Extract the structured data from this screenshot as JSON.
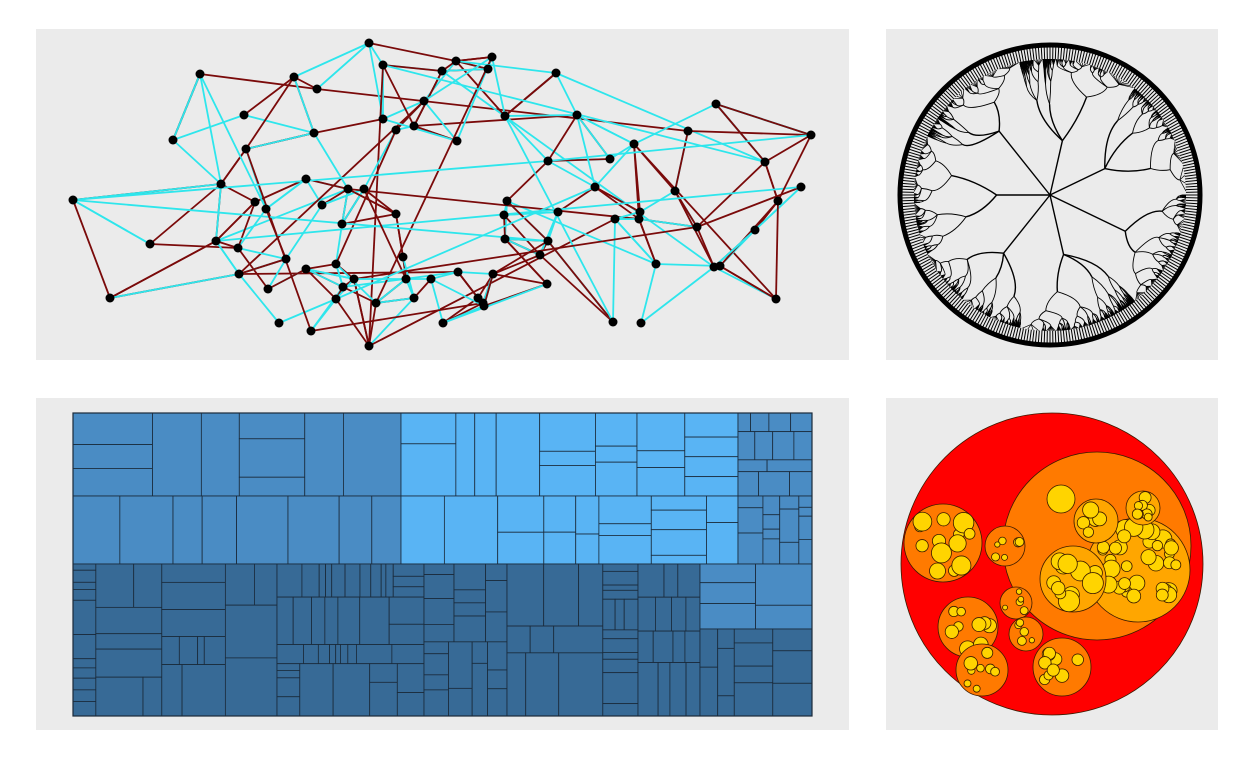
{
  "panels": [
    {
      "id": "network",
      "kind": "network-graph"
    },
    {
      "id": "tree",
      "kind": "radial-dendrogram"
    },
    {
      "id": "treemap",
      "kind": "treemap"
    },
    {
      "id": "pack",
      "kind": "circle-packing"
    }
  ],
  "colors": {
    "panel_background": "#ebebeb",
    "network_edge_a": "#2ee6ec",
    "network_edge_b": "#7a0a0a",
    "network_node": "#000000",
    "tree_stroke": "#000000",
    "tree_fill": "#ebebeb",
    "treemap_light": "#59b4f4",
    "treemap_mid": "#4a8cc4",
    "treemap_dark": "#376a96",
    "pack_outer": "#ff0000",
    "pack_level1": "#ff7a00",
    "pack_level2": "#ffa600",
    "pack_leaf": "#ffd400"
  }
}
